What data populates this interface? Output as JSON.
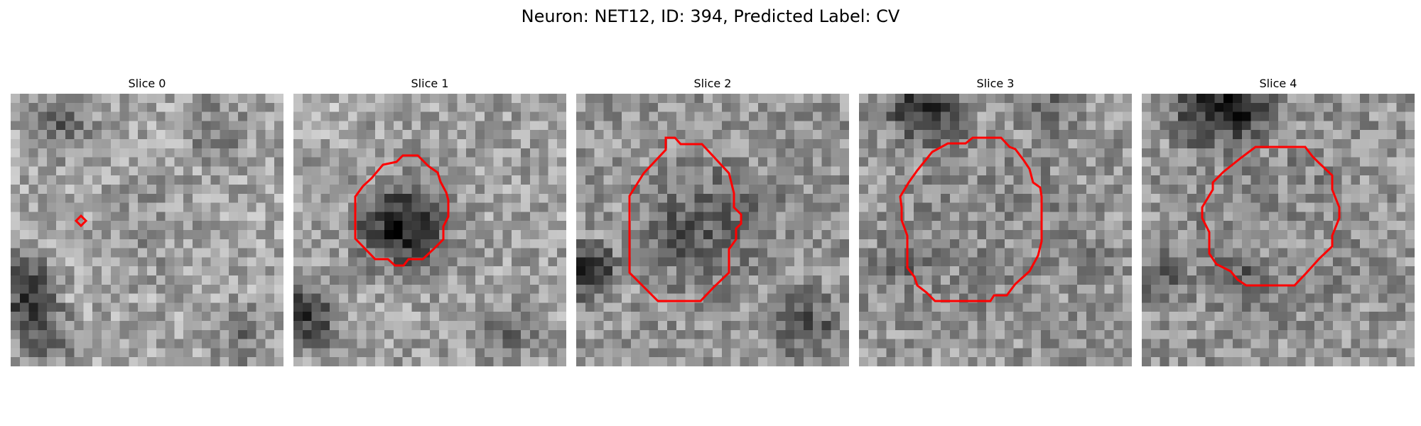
{
  "figure": {
    "title": "Neuron: NET12, ID: 394, Predicted Label: CV"
  },
  "colors": {
    "contour": "#ff0000",
    "background": "#ffffff"
  },
  "panels": [
    {
      "title": "Slice 0"
    },
    {
      "title": "Slice 1"
    },
    {
      "title": "Slice 2"
    },
    {
      "title": "Slice 3"
    },
    {
      "title": "Slice 4"
    }
  ]
}
